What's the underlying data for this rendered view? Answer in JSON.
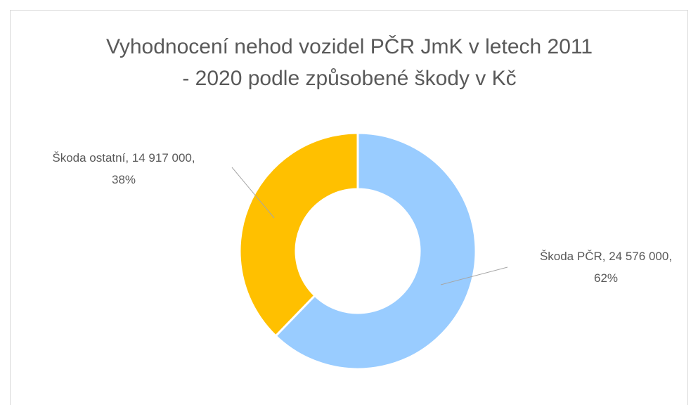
{
  "chart_data": {
    "type": "donut",
    "title": [
      "Vyhodnocení nehod vozidel PČR JmK v letech 2011",
      "- 2020 podle způsobené škody v Kč"
    ],
    "categories": [
      "Škoda PČR",
      "Škoda ostatní"
    ],
    "values": [
      24576000,
      14917000
    ],
    "value_labels": [
      "24 576 000",
      "14 917 000"
    ],
    "percents": [
      62,
      38
    ],
    "percent_labels": [
      "62%",
      "38%"
    ],
    "colors": [
      "#99ccff",
      "#ffc000"
    ]
  }
}
